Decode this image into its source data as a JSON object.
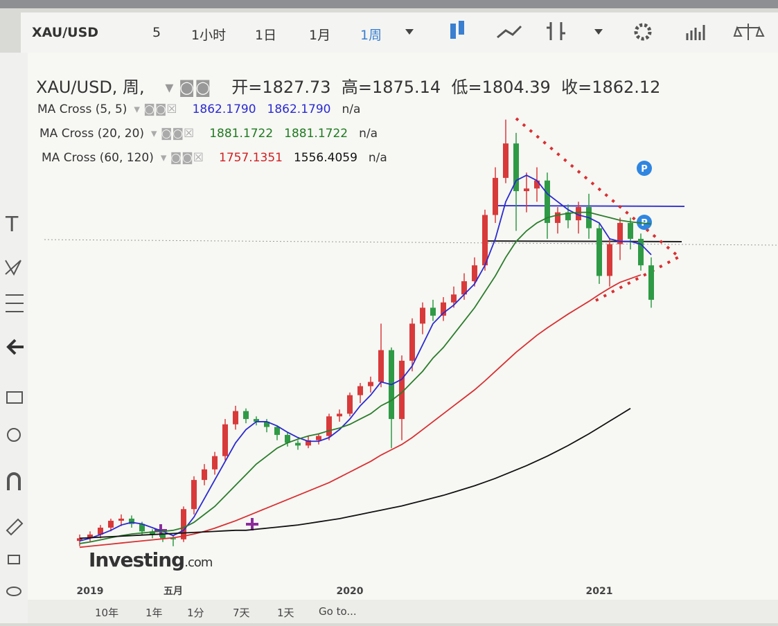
{
  "toolbar": {
    "symbol": "XAU/USD",
    "intervals": [
      "5",
      "1小时",
      "1日",
      "1月",
      "1周"
    ]
  },
  "legend": {
    "title": "XAU/USD, 周,",
    "ohlc": [
      {
        "label": "开=",
        "value": "1827.73"
      },
      {
        "label": "高=",
        "value": "1875.14"
      },
      {
        "label": "低=",
        "value": "1804.39"
      },
      {
        "label": "收=",
        "value": "1862.12"
      }
    ],
    "indicators": [
      {
        "name": "MA Cross (5, 5)",
        "values": [
          "1862.1790",
          "1862.1790",
          "n/a"
        ],
        "colors": [
          "#2a2ad0",
          "#2a2ad0",
          "#333333"
        ]
      },
      {
        "name": "MA Cross (20, 20)",
        "values": [
          "1881.1722",
          "1881.1722",
          "n/a"
        ],
        "colors": [
          "#1e7a1e",
          "#1e7a1e",
          "#333333"
        ]
      },
      {
        "name": "MA Cross (60, 120)",
        "values": [
          "1757.1351",
          "1556.4059",
          "n/a"
        ],
        "colors": [
          "#d02020",
          "#111111",
          "#333333"
        ]
      }
    ]
  },
  "chart_data": {
    "type": "candlestick",
    "up_color": "#d83a3a",
    "down_color": "#2f9a45",
    "ylim": [
      1190,
      2170
    ],
    "categories": [
      null,
      "2019",
      null,
      null,
      null,
      null,
      null,
      null,
      null,
      "五月",
      null,
      null,
      null,
      null,
      null,
      null,
      null,
      null,
      null,
      null,
      null,
      null,
      null,
      null,
      null,
      null,
      "2020",
      null,
      null,
      null,
      null,
      null,
      null,
      null,
      null,
      null,
      null,
      null,
      null,
      null,
      null,
      null,
      null,
      null,
      null,
      null,
      null,
      null,
      null,
      null,
      "2021",
      null,
      null,
      null,
      null,
      null
    ],
    "open": [
      1280,
      1285,
      1292,
      1305,
      1318,
      1322,
      1312,
      1298,
      1292,
      1285,
      1283,
      1340,
      1395,
      1415,
      1440,
      1500,
      1525,
      1510,
      1505,
      1495,
      1480,
      1465,
      1460,
      1470,
      1478,
      1515,
      1520,
      1555,
      1572,
      1580,
      1640,
      1510,
      1620,
      1690,
      1720,
      1705,
      1730,
      1745,
      1770,
      1800,
      1895,
      1965,
      2030,
      1940,
      1945,
      1960,
      1880,
      1900,
      1885,
      1910,
      1870,
      1780,
      1840,
      1880,
      1850,
      1800
    ],
    "high": [
      1292,
      1298,
      1310,
      1322,
      1330,
      1328,
      1316,
      1302,
      1296,
      1290,
      1345,
      1402,
      1425,
      1448,
      1510,
      1535,
      1530,
      1515,
      1510,
      1498,
      1485,
      1470,
      1478,
      1482,
      1520,
      1528,
      1560,
      1578,
      1590,
      1690,
      1645,
      1630,
      1700,
      1730,
      1735,
      1740,
      1760,
      1785,
      1815,
      1905,
      1985,
      2075,
      2050,
      1975,
      1985,
      1975,
      1910,
      1915,
      1920,
      1935,
      1880,
      1850,
      1890,
      1890,
      1860,
      1815
    ],
    "low": [
      1270,
      1278,
      1285,
      1298,
      1308,
      1305,
      1290,
      1285,
      1278,
      1270,
      1278,
      1330,
      1385,
      1405,
      1432,
      1490,
      1502,
      1498,
      1485,
      1470,
      1458,
      1452,
      1455,
      1462,
      1470,
      1505,
      1515,
      1540,
      1560,
      1570,
      1455,
      1470,
      1600,
      1670,
      1695,
      1695,
      1720,
      1735,
      1760,
      1790,
      1880,
      1955,
      1865,
      1900,
      1920,
      1850,
      1860,
      1870,
      1860,
      1850,
      1765,
      1760,
      1810,
      1830,
      1790,
      1720
    ],
    "close": [
      1285,
      1292,
      1305,
      1318,
      1322,
      1312,
      1298,
      1292,
      1285,
      1283,
      1340,
      1395,
      1415,
      1440,
      1500,
      1525,
      1510,
      1505,
      1495,
      1480,
      1465,
      1460,
      1470,
      1478,
      1515,
      1520,
      1555,
      1572,
      1580,
      1640,
      1510,
      1620,
      1690,
      1720,
      1705,
      1730,
      1745,
      1770,
      1800,
      1895,
      1965,
      2030,
      1940,
      1945,
      1960,
      1880,
      1900,
      1885,
      1910,
      1870,
      1780,
      1840,
      1880,
      1850,
      1800,
      1735
    ],
    "lines": [
      {
        "color": "#2a2ad0",
        "values": [
          1280,
          1285,
          1292,
          1300,
          1310,
          1315,
          1312,
          1305,
          1298,
          1290,
          1300,
          1325,
          1360,
          1395,
          1430,
          1465,
          1490,
          1505,
          1505,
          1497,
          1485,
          1475,
          1468,
          1468,
          1475,
          1490,
          1510,
          1535,
          1555,
          1580,
          1575,
          1585,
          1610,
          1650,
          1690,
          1710,
          1725,
          1745,
          1765,
          1800,
          1850,
          1920,
          1960,
          1970,
          1960,
          1935,
          1920,
          1905,
          1895,
          1890,
          1880,
          1850,
          1845,
          1845,
          1840,
          1820
        ]
      },
      {
        "color": "#2a7d2a",
        "values": [
          1275,
          1278,
          1282,
          1286,
          1290,
          1293,
          1295,
          1297,
          1298,
          1300,
          1305,
          1315,
          1330,
          1345,
          1365,
          1385,
          1405,
          1425,
          1440,
          1455,
          1465,
          1472,
          1478,
          1482,
          1488,
          1493,
          1500,
          1510,
          1520,
          1535,
          1545,
          1560,
          1580,
          1600,
          1625,
          1645,
          1670,
          1695,
          1720,
          1750,
          1780,
          1815,
          1845,
          1865,
          1880,
          1890,
          1895,
          1898,
          1900,
          1900,
          1895,
          1890,
          1885,
          1882,
          1880,
          1878
        ]
      },
      {
        "color": "#d83030",
        "values": [
          1268,
          1270,
          1272,
          1274,
          1276,
          1278,
          1280,
          1282,
          1284,
          1286,
          1289,
          1293,
          1298,
          1304,
          1311,
          1318,
          1326,
          1334,
          1342,
          1350,
          1358,
          1366,
          1374,
          1382,
          1390,
          1400,
          1410,
          1420,
          1430,
          1442,
          1452,
          1462,
          1475,
          1490,
          1505,
          1520,
          1535,
          1550,
          1565,
          1582,
          1600,
          1618,
          1636,
          1652,
          1668,
          1682,
          1695,
          1708,
          1720,
          1732,
          1745,
          1757,
          1768,
          1775,
          1782,
          null
        ]
      },
      {
        "color": "#111111",
        "values": [
          1285,
          1286,
          1287,
          1288,
          1289,
          1290,
          1291,
          1292,
          1293,
          1294,
          1295,
          1296,
          1297,
          1298,
          1299,
          1300,
          1300,
          1302,
          1304,
          1306,
          1308,
          1310,
          1313,
          1316,
          1319,
          1322,
          1326,
          1330,
          1334,
          1338,
          1342,
          1346,
          1351,
          1356,
          1361,
          1366,
          1372,
          1378,
          1384,
          1391,
          1398,
          1406,
          1414,
          1422,
          1431,
          1440,
          1450,
          1460,
          1471,
          1482,
          1494,
          1506,
          1518,
          1530,
          null,
          null
        ]
      }
    ]
  },
  "watermark": {
    "brand": "Investing",
    "suffix": ".com"
  },
  "range_bar": [
    "10年",
    "1年",
    "1分",
    "7天",
    "1天",
    "Go to..."
  ]
}
